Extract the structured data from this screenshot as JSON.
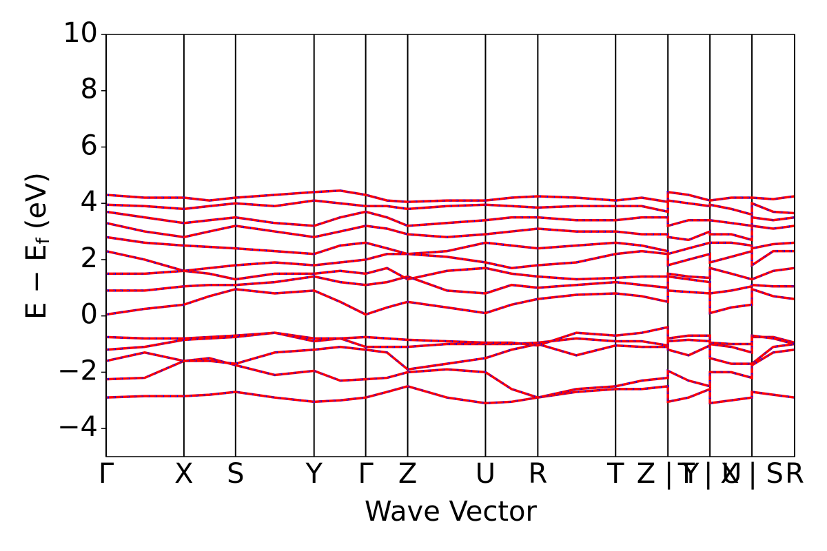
{
  "chart_data": {
    "type": "band-structure",
    "xlabel": "Wave Vector",
    "ylabel": {
      "main": "E − E",
      "sub": "f",
      "unit": "(eV)"
    },
    "xlim": [
      0,
      10
    ],
    "xticks": [
      {
        "value": 0,
        "label": "Γ"
      },
      {
        "value": 1.13,
        "label": "X"
      },
      {
        "value": 1.88,
        "label": "S"
      },
      {
        "value": 3.02,
        "label": "Y"
      },
      {
        "value": 3.77,
        "label": "Γ"
      },
      {
        "value": 4.38,
        "label": "Z"
      },
      {
        "value": 5.51,
        "label": "U"
      },
      {
        "value": 6.27,
        "label": "R"
      },
      {
        "value": 7.4,
        "label": "T"
      },
      {
        "value": 8.16,
        "label": "Z | Y"
      },
      {
        "value": 8.77,
        "label": "T | U"
      },
      {
        "value": 9.38,
        "label": "X | S"
      },
      {
        "value": 10,
        "label": "R"
      }
    ],
    "ylim": [
      -5,
      10
    ],
    "yticks": [
      {
        "value": -4,
        "label": "−4"
      },
      {
        "value": -2,
        "label": "−2"
      },
      0,
      2,
      4,
      6,
      8,
      10
    ],
    "up_color": "#ff0000",
    "down_color": "#0000ff",
    "x": [
      0,
      0.56,
      1.13,
      1.5,
      1.88,
      2.45,
      3.02,
      3.4,
      3.77,
      4.08,
      4.38,
      4.95,
      5.51,
      5.89,
      6.27,
      6.83,
      7.4,
      7.78,
      8.16,
      8.16,
      8.46,
      8.77,
      8.77,
      9.08,
      9.38,
      9.38,
      9.69,
      10
    ],
    "series": [
      {
        "values": [
          -2.9,
          -2.85,
          -2.85,
          -2.8,
          -2.7,
          -2.9,
          -3.05,
          -3.0,
          -2.9,
          -2.7,
          -2.5,
          -2.9,
          -3.1,
          -3.05,
          -2.9,
          -2.7,
          -2.6,
          -2.6,
          -2.5,
          -3.05,
          -2.9,
          -2.6,
          -3.1,
          -3.0,
          -2.9,
          -2.7,
          -2.8,
          -2.9
        ]
      },
      {
        "values": [
          -2.25,
          -2.2,
          -1.6,
          -1.5,
          -1.75,
          -2.1,
          -1.95,
          -2.3,
          -2.25,
          -2.2,
          -2.0,
          -1.9,
          -2.0,
          -2.6,
          -2.9,
          -2.6,
          -2.5,
          -2.3,
          -2.2,
          -1.95,
          -2.3,
          -2.5,
          -2.0,
          -2.0,
          -2.2,
          -1.75,
          -1.3,
          -1.2
        ]
      },
      {
        "values": [
          -1.6,
          -1.3,
          -1.6,
          -1.6,
          -1.7,
          -1.3,
          -1.2,
          -1.1,
          -1.2,
          -1.3,
          -1.9,
          -1.7,
          -1.5,
          -1.2,
          -1.0,
          -1.4,
          -1.05,
          -1.1,
          -1.1,
          -1.2,
          -1.4,
          -1.05,
          -1.5,
          -1.7,
          -1.7,
          -1.7,
          -1.1,
          -1.0
        ]
      },
      {
        "values": [
          -1.2,
          -1.1,
          -0.85,
          -0.8,
          -0.75,
          -0.6,
          -0.9,
          -0.8,
          -1.1,
          -1.1,
          -1.1,
          -1.0,
          -1.0,
          -1.0,
          -0.95,
          -0.8,
          -0.9,
          -0.9,
          -1.05,
          -0.9,
          -0.85,
          -0.9,
          -1.0,
          -1.1,
          -1.3,
          -0.75,
          -0.75,
          -0.95
        ]
      },
      {
        "values": [
          -0.75,
          -0.8,
          -0.8,
          -0.75,
          -0.7,
          -0.6,
          -0.8,
          -0.8,
          -0.75,
          -0.8,
          -0.85,
          -0.9,
          -0.95,
          -0.95,
          -1.05,
          -0.6,
          -0.7,
          -0.6,
          -0.4,
          -0.8,
          -0.7,
          -0.7,
          -0.95,
          -1.0,
          -1.0,
          -0.7,
          -0.8,
          -1.0
        ]
      },
      {
        "values": [
          0.05,
          0.25,
          0.4,
          0.7,
          0.95,
          0.8,
          0.9,
          0.5,
          0.05,
          0.3,
          0.5,
          0.3,
          0.1,
          0.4,
          0.6,
          0.75,
          0.8,
          0.7,
          0.5,
          0.9,
          0.85,
          0.8,
          0.1,
          0.3,
          0.4,
          0.95,
          0.7,
          0.6
        ]
      },
      {
        "values": [
          0.9,
          0.9,
          1.05,
          1.1,
          1.1,
          1.2,
          1.4,
          1.2,
          1.1,
          1.2,
          1.4,
          0.9,
          0.8,
          1.1,
          1.0,
          1.1,
          1.2,
          1.1,
          1.0,
          1.4,
          1.3,
          1.2,
          0.8,
          0.9,
          1.05,
          1.1,
          1.05,
          1.05
        ]
      },
      {
        "values": [
          1.5,
          1.5,
          1.6,
          1.5,
          1.3,
          1.5,
          1.5,
          1.6,
          1.5,
          1.7,
          1.3,
          1.6,
          1.7,
          1.5,
          1.4,
          1.3,
          1.35,
          1.4,
          1.4,
          1.5,
          1.4,
          1.35,
          1.7,
          1.5,
          1.3,
          1.3,
          1.6,
          1.7
        ]
      },
      {
        "values": [
          2.3,
          2.0,
          1.6,
          1.7,
          1.8,
          1.9,
          1.8,
          1.9,
          2.0,
          2.2,
          2.2,
          2.1,
          1.9,
          1.7,
          1.8,
          1.9,
          2.2,
          2.3,
          2.2,
          1.8,
          2.0,
          2.2,
          1.9,
          2.1,
          2.3,
          1.8,
          2.3,
          2.3
        ]
      },
      {
        "values": [
          2.8,
          2.6,
          2.5,
          2.45,
          2.4,
          2.3,
          2.2,
          2.5,
          2.6,
          2.4,
          2.2,
          2.3,
          2.6,
          2.5,
          2.4,
          2.5,
          2.6,
          2.5,
          2.3,
          2.2,
          2.4,
          2.6,
          2.6,
          2.6,
          2.5,
          2.4,
          2.55,
          2.6
        ]
      },
      {
        "values": [
          3.3,
          3.0,
          2.8,
          3.0,
          3.2,
          3.0,
          2.8,
          3.0,
          3.2,
          3.1,
          2.9,
          2.8,
          2.9,
          3.0,
          3.1,
          3.0,
          3.0,
          2.9,
          2.9,
          2.8,
          2.7,
          3.0,
          2.9,
          2.9,
          2.7,
          3.2,
          3.1,
          3.2
        ]
      },
      {
        "values": [
          3.7,
          3.5,
          3.3,
          3.4,
          3.5,
          3.3,
          3.2,
          3.5,
          3.7,
          3.5,
          3.2,
          3.3,
          3.4,
          3.5,
          3.5,
          3.4,
          3.4,
          3.5,
          3.5,
          3.2,
          3.4,
          3.4,
          3.4,
          3.3,
          3.2,
          3.5,
          3.4,
          3.5
        ]
      },
      {
        "values": [
          3.95,
          3.9,
          3.8,
          3.9,
          4.0,
          3.9,
          4.1,
          4.0,
          3.9,
          3.9,
          3.8,
          3.9,
          3.95,
          3.9,
          3.85,
          3.9,
          3.9,
          3.9,
          3.7,
          4.1,
          4.0,
          3.9,
          3.95,
          3.8,
          3.6,
          4.0,
          3.7,
          3.65
        ]
      },
      {
        "values": [
          4.3,
          4.2,
          4.2,
          4.1,
          4.2,
          4.3,
          4.4,
          4.45,
          4.3,
          4.1,
          4.05,
          4.1,
          4.1,
          4.2,
          4.25,
          4.2,
          4.1,
          4.2,
          4.05,
          4.4,
          4.3,
          4.1,
          4.1,
          4.2,
          4.2,
          4.2,
          4.15,
          4.25
        ]
      }
    ]
  }
}
